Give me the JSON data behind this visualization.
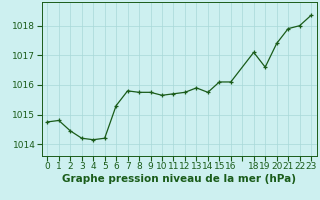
{
  "x": [
    0,
    1,
    2,
    3,
    4,
    5,
    6,
    7,
    8,
    9,
    10,
    11,
    12,
    13,
    14,
    15,
    16,
    18,
    19,
    20,
    21,
    22,
    23
  ],
  "y": [
    1014.75,
    1014.8,
    1014.45,
    1014.2,
    1014.15,
    1014.2,
    1015.3,
    1015.8,
    1015.75,
    1015.75,
    1015.65,
    1015.7,
    1015.75,
    1015.9,
    1015.75,
    1016.1,
    1016.1,
    1017.1,
    1016.6,
    1017.4,
    1017.9,
    1018.0,
    1018.35
  ],
  "line_color": "#1a5c1a",
  "marker_color": "#1a5c1a",
  "bg_color": "#cdf0f0",
  "grid_color": "#a8d8d8",
  "xlabel": "Graphe pression niveau de la mer (hPa)",
  "xlabel_color": "#1a5c1a",
  "tick_color": "#1a5c1a",
  "ylim": [
    1013.6,
    1018.8
  ],
  "xlim": [
    -0.5,
    23.5
  ],
  "yticks": [
    1014,
    1015,
    1016,
    1017,
    1018
  ],
  "xtick_labels": [
    "0",
    "1",
    "2",
    "3",
    "4",
    "5",
    "6",
    "7",
    "8",
    "9",
    "10",
    "11",
    "12",
    "13",
    "14",
    "15",
    "16",
    "",
    "18",
    "19",
    "20",
    "21",
    "22",
    "23"
  ],
  "tick_fontsize": 6.5,
  "xlabel_fontsize": 7.5
}
